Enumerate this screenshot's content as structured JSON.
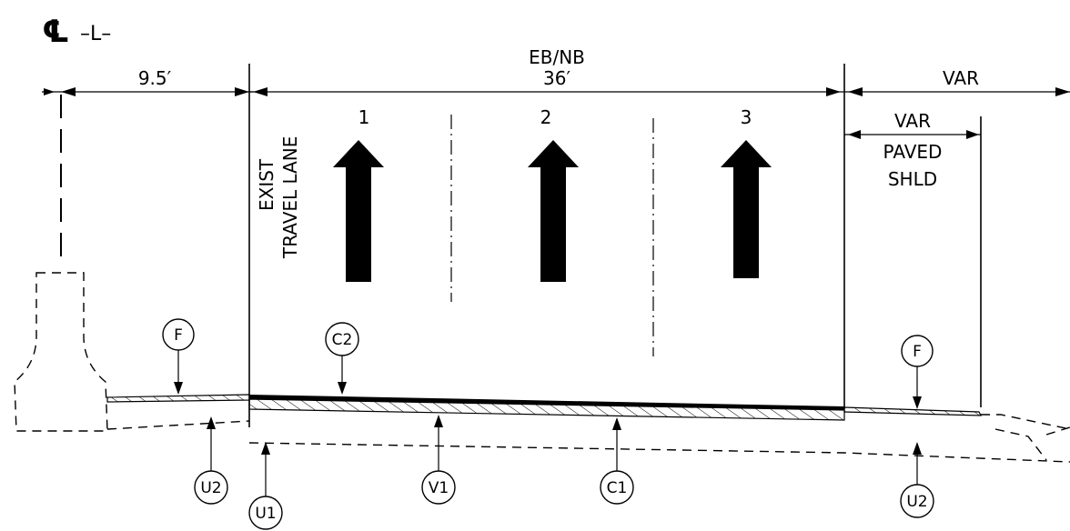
{
  "centerline": {
    "symbol": "℄",
    "label": "–L–"
  },
  "dimensions": {
    "left_width": "9.5′",
    "direction": "EB/NB",
    "travel_width": "36′",
    "right_width": "VAR",
    "shoulder_width": "VAR"
  },
  "lanes": [
    "1",
    "2",
    "3"
  ],
  "labels": {
    "exist_line1": "EXIST",
    "exist_line2": "TRAVEL LANE",
    "paved": "PAVED",
    "shld": "SHLD"
  },
  "callouts": {
    "f_left": "F",
    "c2": "C2",
    "f_right": "F",
    "u2_left": "U2",
    "u1": "U1",
    "v1": "V1",
    "c1": "C1",
    "u2_right": "U2"
  }
}
